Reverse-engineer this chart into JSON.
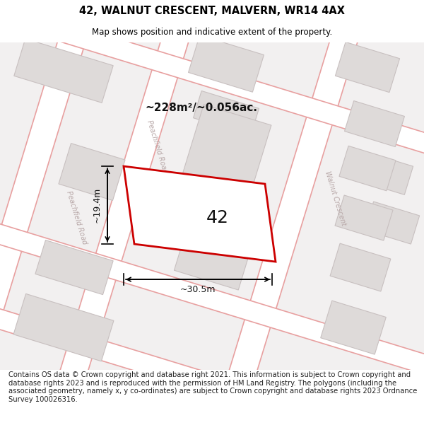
{
  "title_line1": "42, WALNUT CRESCENT, MALVERN, WR14 4AX",
  "title_line2": "Map shows position and indicative extent of the property.",
  "footer_text": "Contains OS data © Crown copyright and database right 2021. This information is subject to Crown copyright and database rights 2023 and is reproduced with the permission of HM Land Registry. The polygons (including the associated geometry, namely x, y co-ordinates) are subject to Crown copyright and database rights 2023 Ordnance Survey 100026316.",
  "area_label": "~228m²/~0.056ac.",
  "plot_number": "42",
  "dim_width": "~30.5m",
  "dim_height": "~19.4m",
  "map_bg": "#f2f0f0",
  "road_fill": "#ffffff",
  "road_line": "#e8a0a0",
  "building_fill": "#dedad9",
  "building_edge": "#c8c0c0",
  "plot_fill": "#ffffff",
  "plot_edge": "#cc0000",
  "road_label_color": "#b8a8a8",
  "title_color": "#000000",
  "footer_color": "#222222",
  "dim_color": "#000000",
  "area_color": "#111111"
}
